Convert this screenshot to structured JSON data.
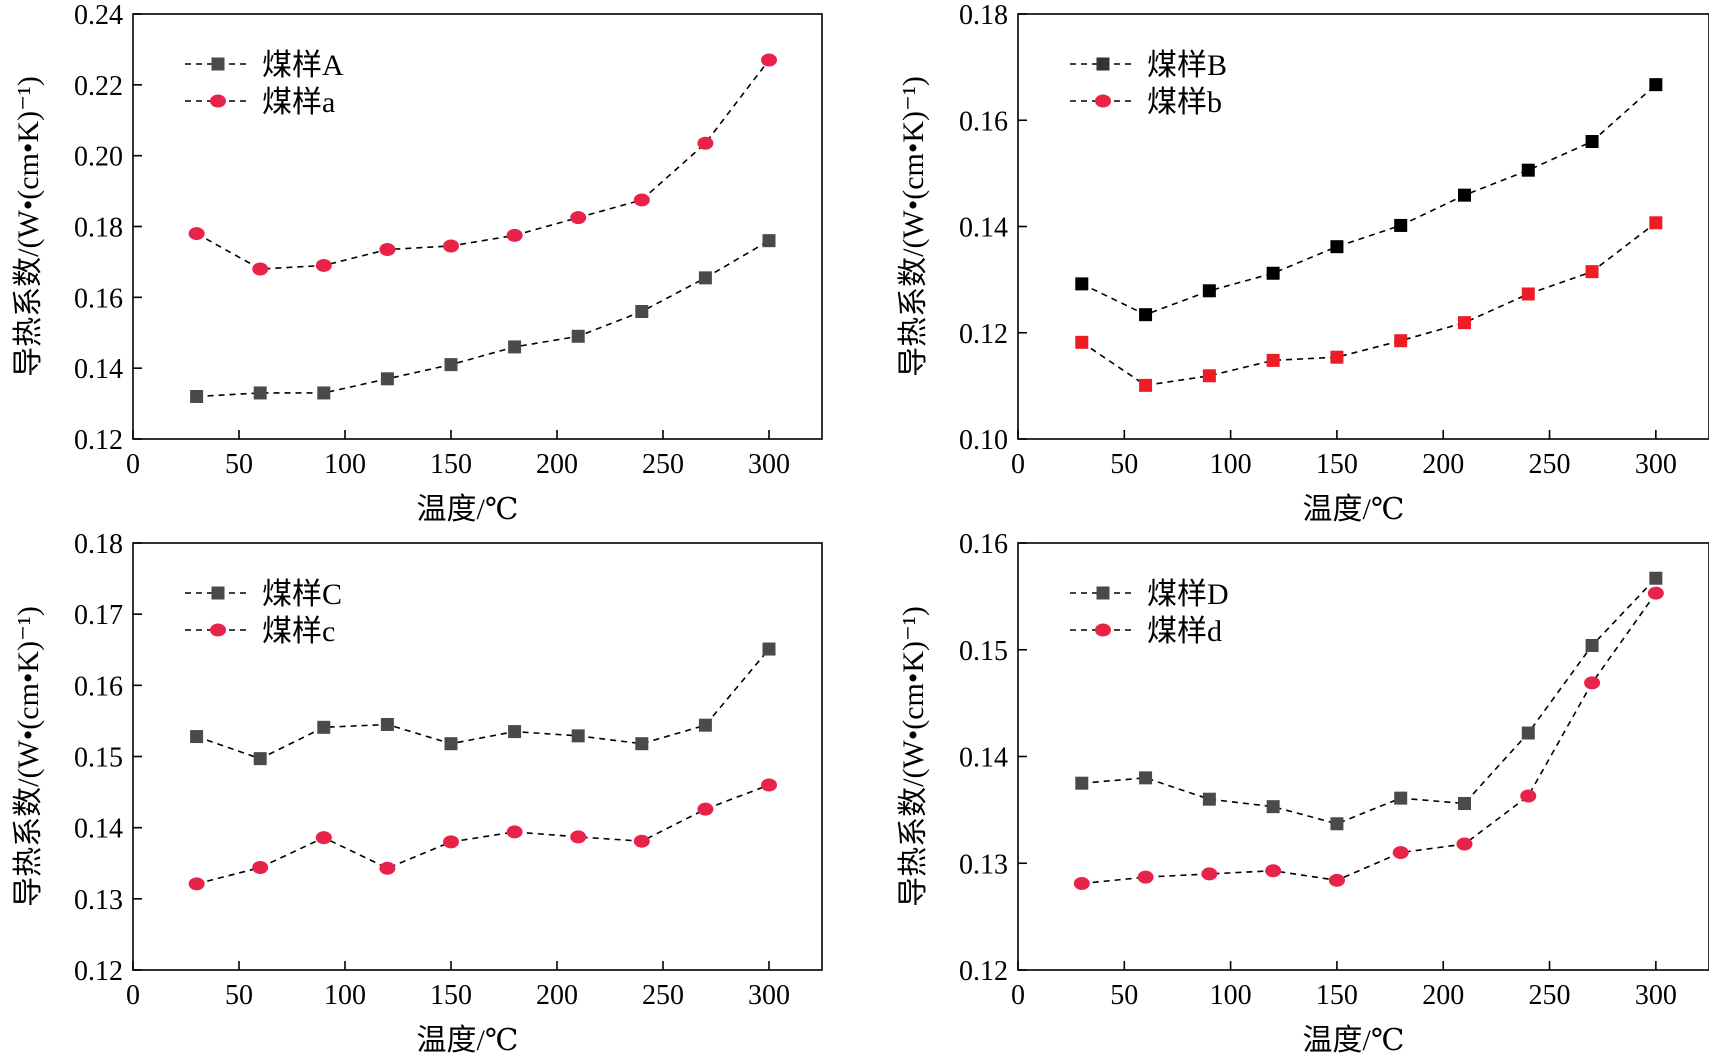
{
  "chart_data": [
    {
      "type": "line",
      "title": "",
      "xlabel": "温度/℃",
      "ylabel": "导热系数/(W•(cm•K)⁻¹)",
      "xlim": [
        0,
        325
      ],
      "ylim": [
        0.12,
        0.24
      ],
      "xticks": [
        0,
        50,
        100,
        150,
        200,
        250,
        300
      ],
      "yticks": [
        "0.12",
        "0.14",
        "0.16",
        "0.18",
        "0.20",
        "0.22",
        "0.24"
      ],
      "grid": false,
      "legend": "top-left",
      "x": [
        30,
        60,
        90,
        120,
        150,
        180,
        210,
        240,
        270,
        300
      ],
      "series": [
        {
          "name": "煤样A",
          "marker": "square",
          "color": "#4a4a4a",
          "values": [
            0.132,
            0.133,
            0.133,
            0.137,
            0.141,
            0.146,
            0.149,
            0.156,
            0.1655,
            0.176
          ]
        },
        {
          "name": "煤样a",
          "marker": "circle",
          "color": "#e8234a",
          "values": [
            0.178,
            0.168,
            0.169,
            0.1735,
            0.1745,
            0.1775,
            0.1825,
            0.1875,
            0.2035,
            0.227
          ]
        }
      ]
    },
    {
      "type": "line",
      "title": "",
      "xlabel": "温度/℃",
      "ylabel": "导热系数/(W•(cm•K)⁻¹)",
      "xlim": [
        0,
        325
      ],
      "ylim": [
        0.1,
        0.18
      ],
      "xticks": [
        0,
        50,
        100,
        150,
        200,
        250,
        300
      ],
      "yticks": [
        "0.10",
        "0.12",
        "0.14",
        "0.16",
        "0.18"
      ],
      "grid": false,
      "legend": "top-left",
      "x": [
        30,
        60,
        90,
        120,
        150,
        180,
        210,
        240,
        270,
        300
      ],
      "series": [
        {
          "name": "煤样B",
          "marker": "square",
          "color": "#000000",
          "legend_color": "#333333",
          "values": [
            0.1292,
            0.1234,
            0.1279,
            0.1312,
            0.1362,
            0.1402,
            0.1459,
            0.1506,
            0.156,
            0.1667
          ]
        },
        {
          "name": "煤样b",
          "marker": "square",
          "color": "#ee1c25",
          "legend_marker": "circle",
          "legend_color": "#e8234a",
          "values": [
            0.1182,
            0.1101,
            0.1119,
            0.1148,
            0.1154,
            0.1185,
            0.1219,
            0.1273,
            0.1315,
            0.1407
          ]
        }
      ]
    },
    {
      "type": "line",
      "title": "",
      "xlabel": "温度/℃",
      "ylabel": "导热系数/(W•(cm•K)⁻¹)",
      "xlim": [
        0,
        325
      ],
      "ylim": [
        0.12,
        0.18
      ],
      "xticks": [
        0,
        50,
        100,
        150,
        200,
        250,
        300
      ],
      "yticks": [
        "0.12",
        "0.13",
        "0.14",
        "0.15",
        "0.16",
        "0.17",
        "0.18"
      ],
      "grid": false,
      "legend": "top-left",
      "x": [
        30,
        60,
        90,
        120,
        150,
        180,
        210,
        240,
        270,
        300
      ],
      "series": [
        {
          "name": "煤样C",
          "marker": "square",
          "color": "#4a4a4a",
          "values": [
            0.1528,
            0.1497,
            0.1541,
            0.1545,
            0.1518,
            0.1535,
            0.1529,
            0.1518,
            0.1544,
            0.1651
          ]
        },
        {
          "name": "煤样c",
          "marker": "circle",
          "color": "#e8234a",
          "values": [
            0.1321,
            0.1344,
            0.1386,
            0.1343,
            0.138,
            0.1394,
            0.1387,
            0.1381,
            0.1426,
            0.146
          ]
        }
      ]
    },
    {
      "type": "line",
      "title": "",
      "xlabel": "温度/℃",
      "ylabel": "导热系数/(W•(cm•K)⁻¹)",
      "xlim": [
        0,
        325
      ],
      "ylim": [
        0.12,
        0.16
      ],
      "xticks": [
        0,
        50,
        100,
        150,
        200,
        250,
        300
      ],
      "yticks": [
        "0.12",
        "0.13",
        "0.14",
        "0.15",
        "0.16"
      ],
      "grid": false,
      "legend": "top-left",
      "x": [
        30,
        60,
        90,
        120,
        150,
        180,
        210,
        240,
        270,
        300
      ],
      "series": [
        {
          "name": "煤样D",
          "marker": "square",
          "color": "#4a4a4a",
          "values": [
            0.1375,
            0.138,
            0.136,
            0.1353,
            0.1337,
            0.1361,
            0.1356,
            0.1422,
            0.1504,
            0.1567
          ]
        },
        {
          "name": "煤样d",
          "marker": "circle",
          "color": "#e8234a",
          "values": [
            0.1281,
            0.1287,
            0.129,
            0.1293,
            0.1284,
            0.131,
            0.1318,
            0.1363,
            0.1469,
            0.1553
          ]
        }
      ]
    }
  ]
}
